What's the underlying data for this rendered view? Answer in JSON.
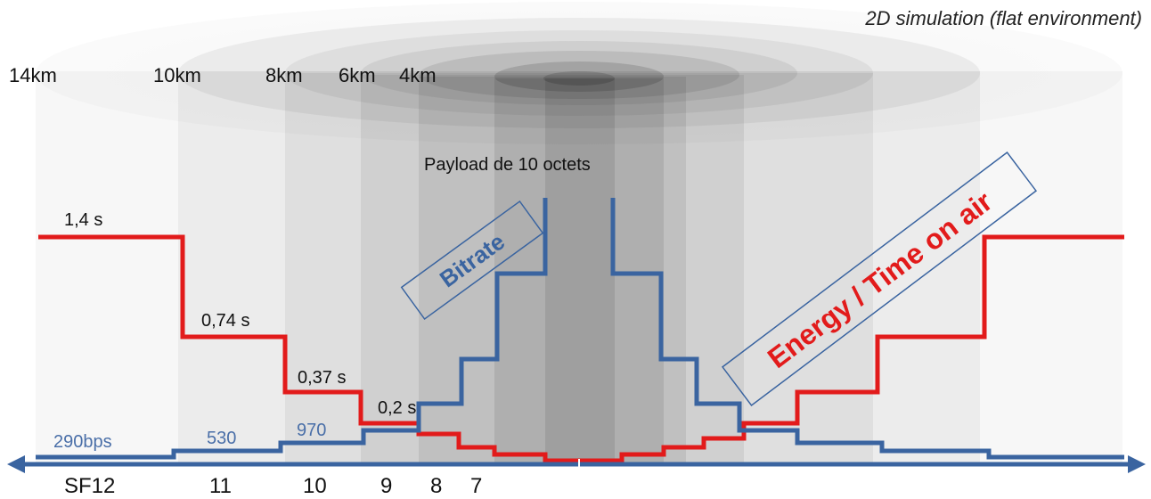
{
  "title": "2D simulation (flat environment)",
  "payload_label": "Payload de 10 octets",
  "distance_labels": [
    "14km",
    "10km",
    "8km",
    "6km",
    "4km"
  ],
  "time_on_air_labels": [
    "1,4 s",
    "0,74 s",
    "0,37 s",
    "0,2 s"
  ],
  "bitrate_labels": [
    "290bps",
    "530",
    "970"
  ],
  "sf_labels": [
    "SF12",
    "11",
    "10",
    "9",
    "8",
    "7"
  ],
  "legend": {
    "bitrate": "Bitrate",
    "energy": "Energy / Time on air"
  },
  "colors": {
    "energy_line": "#e21b1b",
    "bitrate_line": "#3a64a0",
    "axis": "#3a64a0",
    "bitrate_text": "#4a6fa8",
    "zone_grey": "#000000"
  }
}
